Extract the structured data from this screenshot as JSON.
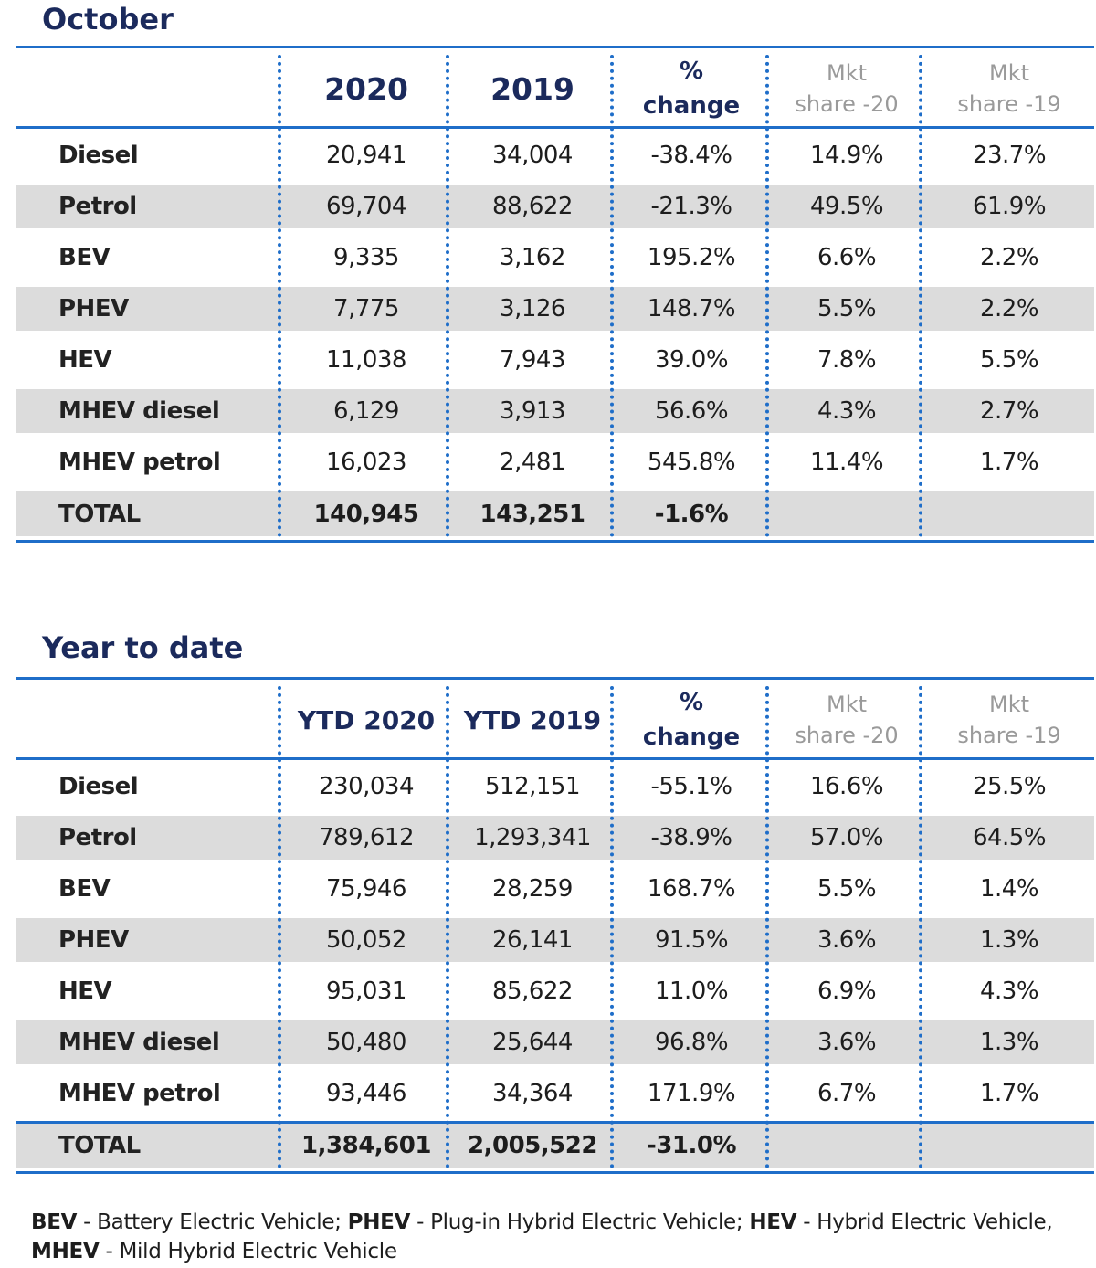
{
  "october": {
    "title": "October",
    "headers": {
      "y2020": "2020",
      "y2019": "2019",
      "pct_line1": "%",
      "pct_line2": "change",
      "mkt20_line1": "Mkt",
      "mkt20_line2": "share -20",
      "mkt19_line1": "Mkt",
      "mkt19_line2": "share -19"
    },
    "rows": [
      {
        "label": "Diesel",
        "v2020": "20,941",
        "v2019": "34,004",
        "change": "-38.4%",
        "share20": "14.9%",
        "share19": "23.7%"
      },
      {
        "label": "Petrol",
        "v2020": "69,704",
        "v2019": "88,622",
        "change": "-21.3%",
        "share20": "49.5%",
        "share19": "61.9%"
      },
      {
        "label": "BEV",
        "v2020": "9,335",
        "v2019": "3,162",
        "change": "195.2%",
        "share20": "6.6%",
        "share19": "2.2%"
      },
      {
        "label": "PHEV",
        "v2020": "7,775",
        "v2019": "3,126",
        "change": "148.7%",
        "share20": "5.5%",
        "share19": "2.2%"
      },
      {
        "label": "HEV",
        "v2020": "11,038",
        "v2019": "7,943",
        "change": "39.0%",
        "share20": "7.8%",
        "share19": "5.5%"
      },
      {
        "label": "MHEV diesel",
        "v2020": "6,129",
        "v2019": "3,913",
        "change": "56.6%",
        "share20": "4.3%",
        "share19": "2.7%"
      },
      {
        "label": "MHEV petrol",
        "v2020": "16,023",
        "v2019": "2,481",
        "change": "545.8%",
        "share20": "11.4%",
        "share19": "1.7%"
      }
    ],
    "total": {
      "label": "TOTAL",
      "v2020": "140,945",
      "v2019": "143,251",
      "change": "-1.6%"
    }
  },
  "ytd": {
    "title": "Year to date",
    "headers": {
      "y2020": "YTD 2020",
      "y2019": "YTD 2019",
      "pct_line1": "%",
      "pct_line2": "change",
      "mkt20_line1": "Mkt",
      "mkt20_line2": "share -20",
      "mkt19_line1": "Mkt",
      "mkt19_line2": "share -19"
    },
    "rows": [
      {
        "label": "Diesel",
        "v2020": "230,034",
        "v2019": "512,151",
        "change": "-55.1%",
        "share20": "16.6%",
        "share19": "25.5%"
      },
      {
        "label": "Petrol",
        "v2020": "789,612",
        "v2019": "1,293,341",
        "change": "-38.9%",
        "share20": "57.0%",
        "share19": "64.5%"
      },
      {
        "label": "BEV",
        "v2020": "75,946",
        "v2019": "28,259",
        "change": "168.7%",
        "share20": "5.5%",
        "share19": "1.4%"
      },
      {
        "label": "PHEV",
        "v2020": "50,052",
        "v2019": "26,141",
        "change": "91.5%",
        "share20": "3.6%",
        "share19": "1.3%"
      },
      {
        "label": "HEV",
        "v2020": "95,031",
        "v2019": "85,622",
        "change": "11.0%",
        "share20": "6.9%",
        "share19": "4.3%"
      },
      {
        "label": "MHEV diesel",
        "v2020": "50,480",
        "v2019": "25,644",
        "change": "96.8%",
        "share20": "3.6%",
        "share19": "1.3%"
      },
      {
        "label": "MHEV petrol",
        "v2020": "93,446",
        "v2019": "34,364",
        "change": "171.9%",
        "share20": "6.7%",
        "share19": "1.7%"
      }
    ],
    "total": {
      "label": "TOTAL",
      "v2020": "1,384,601",
      "v2019": "2,005,522",
      "change": "-31.0%"
    }
  },
  "footnote": {
    "bev_abbr": "BEV",
    "bev_text": " - Battery Electric Vehicle; ",
    "phev_abbr": "PHEV",
    "phev_text": " - Plug-in Hybrid Electric Vehicle; ",
    "hev_abbr": "HEV",
    "hev_text": " - Hybrid Electric Vehicle,",
    "mhev_abbr": "MHEV",
    "mhev_text": " - Mild Hybrid Electric Vehicle"
  },
  "colors": {
    "title": "#1b2a5c",
    "rule": "#1f6ec9",
    "row_shade": "#dcdcdc",
    "mkt_header": "#9a9a9a"
  }
}
